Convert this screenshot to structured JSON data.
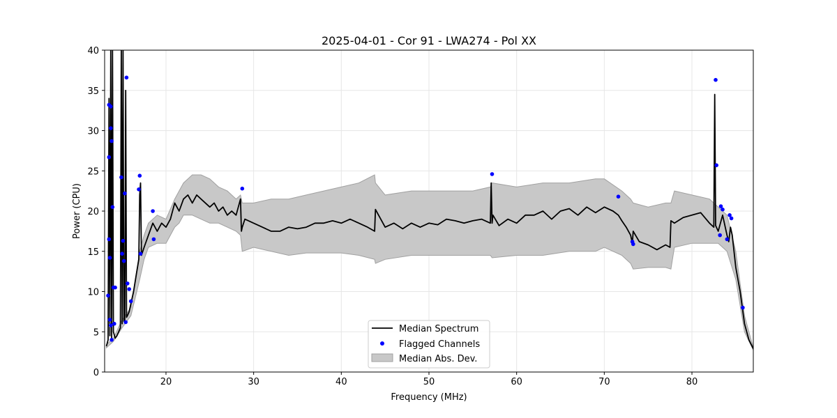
{
  "chart_data": {
    "type": "line",
    "title": "2025-04-01 - Cor 91 - LWA274 - Pol XX",
    "xlabel": "Frequency (MHz)",
    "ylabel": "Power (CPU)",
    "xlim": [
      13.0,
      87.0
    ],
    "ylim": [
      0,
      40
    ],
    "xticks": [
      20,
      30,
      40,
      50,
      60,
      70,
      80
    ],
    "yticks": [
      0,
      5,
      10,
      15,
      20,
      25,
      30,
      35,
      40
    ],
    "grid": true,
    "legend_position": "lower-center",
    "colors": {
      "median": "#000000",
      "flagged": "#0000ff",
      "mad_fill": "#c8c8c8",
      "mad_edge": "#a0a0a0"
    },
    "series": [
      {
        "name": "Median Spectrum",
        "kind": "line",
        "x": [
          13.2,
          13.4,
          13.5,
          13.6,
          13.7,
          13.8,
          13.9,
          14.0,
          14.2,
          14.4,
          14.6,
          14.8,
          14.9,
          15.0,
          15.1,
          15.2,
          15.3,
          15.4,
          15.5,
          15.6,
          15.8,
          16.0,
          16.3,
          16.6,
          16.9,
          17.0,
          17.1,
          17.2,
          17.5,
          18.0,
          18.5,
          19.0,
          19.5,
          20.0,
          20.5,
          21.0,
          21.5,
          22.0,
          22.5,
          23.0,
          23.5,
          24.0,
          24.5,
          25.0,
          25.5,
          26.0,
          26.5,
          27.0,
          27.5,
          28.0,
          28.5,
          28.6,
          28.7,
          29.0,
          30.0,
          31.0,
          32.0,
          33.0,
          34.0,
          35.0,
          36.0,
          37.0,
          38.0,
          39.0,
          40.0,
          41.0,
          42.0,
          43.0,
          43.8,
          43.9,
          45.0,
          46.0,
          47.0,
          48.0,
          49.0,
          50.0,
          51.0,
          52.0,
          53.0,
          54.0,
          55.0,
          56.0,
          57.0,
          57.1,
          57.2,
          57.3,
          58.0,
          59.0,
          60.0,
          61.0,
          62.0,
          63.0,
          64.0,
          65.0,
          66.0,
          67.0,
          68.0,
          69.0,
          70.0,
          71.0,
          71.6,
          72.0,
          72.5,
          73.0,
          73.2,
          73.3,
          74.0,
          75.0,
          76.0,
          77.0,
          77.5,
          77.6,
          78.0,
          79.0,
          80.0,
          81.0,
          82.0,
          82.5,
          82.6,
          82.7,
          83.0,
          83.5,
          84.0,
          84.2,
          84.4,
          84.6,
          85.0,
          85.5,
          86.0,
          86.5,
          87.0
        ],
        "y": [
          3.2,
          4.0,
          34.0,
          4.5,
          40.0,
          4.2,
          40.0,
          5.0,
          4.2,
          4.5,
          5.0,
          5.5,
          40.0,
          6.0,
          40.0,
          6.3,
          6.5,
          35.0,
          6.8,
          7.0,
          7.5,
          8.5,
          10.0,
          12.0,
          14.0,
          22.0,
          23.5,
          14.5,
          15.5,
          17.0,
          18.5,
          17.5,
          18.5,
          18.0,
          19.0,
          21.0,
          20.0,
          21.5,
          22.0,
          21.0,
          22.0,
          21.5,
          21.0,
          20.5,
          21.0,
          20.0,
          20.5,
          19.5,
          20.0,
          19.5,
          21.5,
          17.5,
          18.0,
          19.0,
          18.5,
          18.0,
          17.5,
          17.5,
          18.0,
          17.8,
          18.0,
          18.5,
          18.5,
          18.8,
          18.5,
          19.0,
          18.5,
          18.0,
          17.5,
          20.2,
          18.0,
          18.5,
          17.8,
          18.5,
          18.0,
          18.5,
          18.3,
          19.0,
          18.8,
          18.5,
          18.8,
          19.0,
          18.5,
          23.5,
          18.5,
          19.5,
          18.2,
          19.0,
          18.5,
          19.5,
          19.5,
          20.0,
          19.0,
          20.0,
          20.3,
          19.5,
          20.5,
          19.8,
          20.5,
          20.0,
          19.5,
          18.8,
          18.0,
          17.0,
          16.0,
          17.5,
          16.2,
          15.8,
          15.2,
          15.8,
          15.5,
          18.8,
          18.5,
          19.2,
          19.5,
          19.8,
          18.5,
          18.0,
          34.5,
          18.2,
          17.5,
          19.5,
          17.0,
          16.2,
          18.0,
          17.0,
          13.0,
          10.0,
          6.0,
          4.0,
          2.9
        ],
        "color": "#000000"
      },
      {
        "name": "Flagged Channels",
        "kind": "scatter",
        "x": [
          13.4,
          13.5,
          13.5,
          13.6,
          13.7,
          13.7,
          13.8,
          13.9,
          13.5,
          13.6,
          13.7,
          13.8,
          14.0,
          14.1,
          14.2,
          14.9,
          15.0,
          15.1,
          15.2,
          15.3,
          15.4,
          15.5,
          15.6,
          15.8,
          16.0,
          16.9,
          17.0,
          17.1,
          18.5,
          18.6,
          28.7,
          57.2,
          71.6,
          73.2,
          73.3,
          82.7,
          82.8,
          83.2,
          83.3,
          83.5,
          84.0,
          84.3,
          84.5,
          85.8
        ],
        "y": [
          9.5,
          16.5,
          33.2,
          14.2,
          33.0,
          30.3,
          28.7,
          20.5,
          26.7,
          6.5,
          5.8,
          4.0,
          10.5,
          6.0,
          10.5,
          24.2,
          14.7,
          16.3,
          13.8,
          22.2,
          6.2,
          36.6,
          11.0,
          10.3,
          8.8,
          22.7,
          24.4,
          14.7,
          20.0,
          16.5,
          22.8,
          24.6,
          21.8,
          16.2,
          15.9,
          36.3,
          25.7,
          17.0,
          20.6,
          20.2,
          16.5,
          19.5,
          19.1,
          8.0
        ],
        "color": "#0000ff"
      },
      {
        "name": "Median Abs. Dev.",
        "kind": "band",
        "x": [
          13.2,
          14.0,
          15.0,
          16.0,
          17.0,
          17.5,
          18.0,
          19.0,
          20.0,
          21.0,
          21.5,
          22.0,
          23.0,
          24.0,
          25.0,
          26.0,
          27.0,
          28.0,
          28.5,
          28.7,
          30.0,
          32.0,
          34.0,
          36.0,
          38.0,
          40.0,
          42.0,
          43.8,
          43.9,
          45.0,
          48.0,
          50.0,
          52.0,
          55.0,
          57.0,
          57.2,
          60.0,
          63.0,
          66.0,
          69.0,
          70.0,
          72.0,
          73.0,
          73.3,
          75.0,
          77.0,
          77.6,
          78.0,
          80.0,
          82.0,
          83.0,
          84.0,
          85.0,
          86.0,
          87.0
        ],
        "lower": [
          3.0,
          3.8,
          5.5,
          7.0,
          11.5,
          14.0,
          15.5,
          16.0,
          16.0,
          18.0,
          18.5,
          19.5,
          19.5,
          19.0,
          18.5,
          18.5,
          18.0,
          17.5,
          17.0,
          15.0,
          15.5,
          15.0,
          14.5,
          14.8,
          14.8,
          14.8,
          14.5,
          14.0,
          13.5,
          14.0,
          14.5,
          14.5,
          14.5,
          14.5,
          14.5,
          14.2,
          14.5,
          14.5,
          15.0,
          15.0,
          15.5,
          14.5,
          13.5,
          12.8,
          13.0,
          13.0,
          12.8,
          15.5,
          16.0,
          16.0,
          16.0,
          15.0,
          11.5,
          5.0,
          2.7
        ],
        "upper": [
          3.4,
          4.2,
          6.5,
          8.0,
          15.0,
          17.0,
          18.5,
          19.5,
          19.0,
          21.5,
          22.5,
          23.5,
          24.5,
          24.5,
          24.0,
          23.0,
          22.5,
          21.5,
          22.0,
          21.0,
          21.0,
          21.5,
          21.5,
          22.0,
          22.5,
          23.0,
          23.5,
          24.5,
          23.5,
          22.0,
          22.5,
          22.5,
          22.5,
          22.5,
          23.0,
          23.5,
          23.0,
          23.5,
          23.5,
          24.0,
          24.0,
          22.5,
          21.5,
          21.0,
          20.5,
          21.0,
          21.0,
          22.5,
          22.0,
          21.5,
          20.5,
          19.5,
          15.0,
          7.0,
          3.0
        ],
        "color": "#c8c8c8"
      }
    ]
  }
}
